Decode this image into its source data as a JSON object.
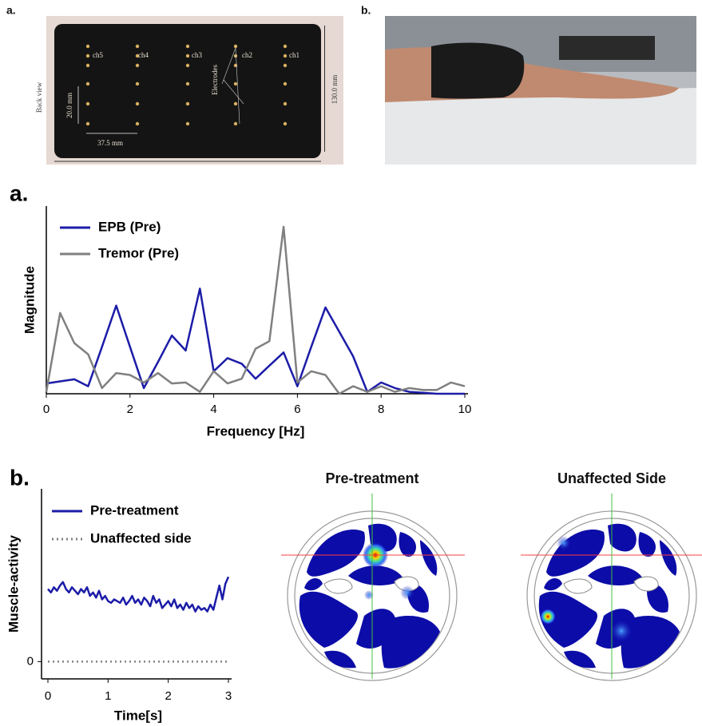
{
  "figure_top": {
    "label_a": "a.",
    "label_b": "b.",
    "channels": [
      "ch5",
      "ch4",
      "ch3",
      "ch2",
      "ch1"
    ],
    "back_view": "Back view",
    "row_spacing": "20.0 mm",
    "column_spacing": "37.5 mm",
    "height": "130.0 mm",
    "electrodes": "Electrodes"
  },
  "chart_data": [
    {
      "type": "line",
      "panel_label": "a.",
      "x_label": "Frequency [Hz]",
      "y_label": "Magnitude",
      "x": [
        0,
        0.33,
        0.67,
        1,
        1.33,
        1.67,
        2,
        2.33,
        2.67,
        3,
        3.33,
        3.67,
        4,
        4.33,
        4.67,
        5,
        5.33,
        5.67,
        6,
        6.33,
        6.67,
        7,
        7.33,
        7.67,
        8,
        8.33,
        8.67,
        9,
        9.33,
        9.67,
        10
      ],
      "series": [
        {
          "name": "EPB (Pre)",
          "color": "#1c1ca8",
          "values": [
            0.055,
            0.066,
            0.077,
            0.04,
            0.25,
            0.47,
            0.25,
            0.03,
            0.17,
            0.31,
            0.23,
            0.56,
            0.12,
            0.19,
            0.16,
            0.08,
            0.15,
            0.22,
            0.04,
            0.25,
            0.46,
            0.33,
            0.2,
            0.01,
            0.06,
            0.03,
            0.01,
            0.005,
            0,
            0,
            0
          ]
        },
        {
          "name": "Tremor (Pre)",
          "color": "#808080",
          "values": [
            0.01,
            0.43,
            0.27,
            0.21,
            0.03,
            0.11,
            0.1,
            0.06,
            0.11,
            0.055,
            0.06,
            0.01,
            0.12,
            0.055,
            0.08,
            0.24,
            0.28,
            0.89,
            0.06,
            0.12,
            0.1,
            0,
            0.04,
            0.01,
            0.04,
            0.01,
            0.03,
            0.02,
            0.02,
            0.06,
            0.04
          ]
        }
      ],
      "xlim": [
        0,
        10
      ],
      "xticks": [
        0,
        2,
        4,
        6,
        8,
        10
      ],
      "ylim": [
        0,
        1
      ],
      "legend": "upper left"
    },
    {
      "type": "line",
      "panel_label": "b.",
      "x_label": "Time[s]",
      "y_label": "Muscle-activity",
      "x": [
        0,
        0.05,
        0.1,
        0.15,
        0.2,
        0.25,
        0.3,
        0.35,
        0.4,
        0.45,
        0.5,
        0.55,
        0.6,
        0.65,
        0.7,
        0.75,
        0.8,
        0.85,
        0.9,
        0.95,
        1,
        1.05,
        1.1,
        1.15,
        1.2,
        1.25,
        1.3,
        1.35,
        1.4,
        1.45,
        1.5,
        1.55,
        1.6,
        1.65,
        1.7,
        1.75,
        1.8,
        1.85,
        1.9,
        1.95,
        2,
        2.05,
        2.1,
        2.15,
        2.2,
        2.25,
        2.3,
        2.35,
        2.4,
        2.45,
        2.5,
        2.55,
        2.6,
        2.65,
        2.7,
        2.75,
        2.8,
        2.85,
        2.9,
        2.95,
        3
      ],
      "series": [
        {
          "name": "Pre-treatment",
          "color": "#1c1ca8",
          "values": [
            0.42,
            0.4,
            0.43,
            0.41,
            0.44,
            0.46,
            0.42,
            0.4,
            0.43,
            0.41,
            0.39,
            0.42,
            0.4,
            0.43,
            0.38,
            0.4,
            0.37,
            0.41,
            0.36,
            0.38,
            0.35,
            0.34,
            0.36,
            0.35,
            0.34,
            0.37,
            0.33,
            0.35,
            0.38,
            0.34,
            0.36,
            0.33,
            0.37,
            0.35,
            0.32,
            0.38,
            0.34,
            0.36,
            0.31,
            0.33,
            0.35,
            0.32,
            0.36,
            0.31,
            0.33,
            0.3,
            0.34,
            0.31,
            0.33,
            0.29,
            0.32,
            0.3,
            0.31,
            0.29,
            0.33,
            0.3,
            0.37,
            0.44,
            0.36,
            0.45,
            0.49
          ]
        },
        {
          "name": "Unaffected side",
          "color": "#808080",
          "dash": "dotted",
          "values": [
            0,
            0,
            0,
            0,
            0,
            0,
            0,
            0,
            0,
            0,
            0,
            0,
            0,
            0,
            0,
            0,
            0,
            0,
            0,
            0,
            0,
            0,
            0,
            0,
            0,
            0,
            0,
            0,
            0,
            0,
            0,
            0,
            0,
            0,
            0,
            0,
            0,
            0,
            0,
            0,
            0,
            0,
            0,
            0,
            0,
            0,
            0,
            0,
            0,
            0,
            0,
            0,
            0,
            0,
            0,
            0,
            0,
            0,
            0,
            0,
            0
          ]
        }
      ],
      "xlim": [
        0,
        3
      ],
      "xticks": [
        0,
        1,
        2,
        3
      ],
      "ylim": [
        -0.1,
        1
      ],
      "yticks": [
        0
      ],
      "legend": "upper left"
    }
  ],
  "heatmaps": {
    "titles": [
      "Pre-treatment",
      "Unaffected Side"
    ]
  }
}
